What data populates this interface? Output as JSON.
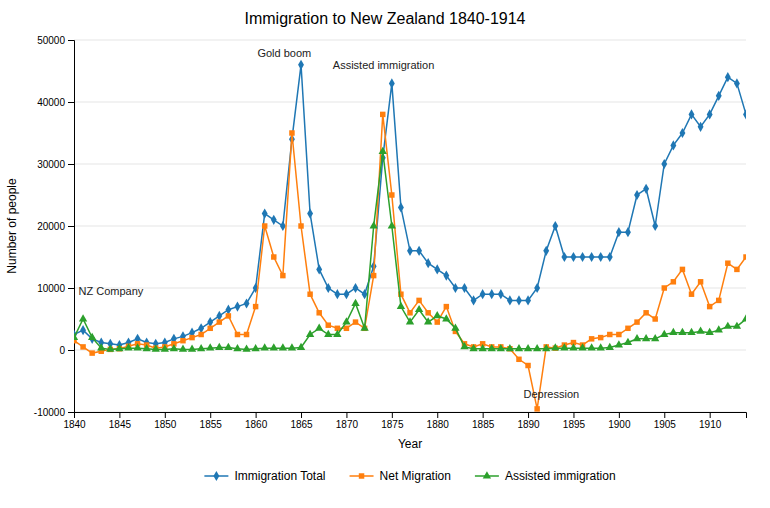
{
  "chart_data": {
    "type": "line",
    "title": "Immigration to New Zealand 1840-1914",
    "xlabel": "Year",
    "ylabel": "Number of people",
    "xlim": [
      1840,
      1914
    ],
    "ylim": [
      -10000,
      50000
    ],
    "xticks": [
      1840,
      1845,
      1850,
      1855,
      1860,
      1865,
      1870,
      1875,
      1880,
      1885,
      1890,
      1895,
      1900,
      1905,
      1910
    ],
    "yticks": [
      -10000,
      0,
      10000,
      20000,
      30000,
      40000,
      50000
    ],
    "grid": true,
    "legend": "bottom",
    "annotations": [
      {
        "text": "NZ Company",
        "x": 1840.5,
        "y": 8500
      },
      {
        "text": "Gold boom",
        "x": 1860.2,
        "y": 47000
      },
      {
        "text": "Assisted immigration",
        "x": 1868.5,
        "y": 45000
      },
      {
        "text": "Depression",
        "x": 1889.5,
        "y": -8000
      }
    ],
    "x": [
      1840,
      1841,
      1842,
      1843,
      1844,
      1845,
      1846,
      1847,
      1848,
      1849,
      1850,
      1851,
      1852,
      1853,
      1854,
      1855,
      1856,
      1857,
      1858,
      1859,
      1860,
      1861,
      1862,
      1863,
      1864,
      1865,
      1866,
      1867,
      1868,
      1869,
      1870,
      1871,
      1872,
      1873,
      1874,
      1875,
      1876,
      1877,
      1878,
      1879,
      1880,
      1881,
      1882,
      1883,
      1884,
      1885,
      1886,
      1887,
      1888,
      1889,
      1890,
      1891,
      1892,
      1893,
      1894,
      1895,
      1896,
      1897,
      1898,
      1899,
      1900,
      1901,
      1902,
      1903,
      1904,
      1905,
      1906,
      1907,
      1908,
      1909,
      1910,
      1911,
      1912,
      1913,
      1914
    ],
    "series": [
      {
        "name": "Immigration Total",
        "marker": "diamond",
        "values": [
          2500,
          3200,
          1800,
          1200,
          1000,
          800,
          1200,
          1800,
          1200,
          1000,
          1200,
          1800,
          2200,
          2800,
          3500,
          4500,
          5500,
          6500,
          7000,
          7500,
          10000,
          22000,
          21000,
          20000,
          34000,
          46000,
          22000,
          13000,
          10000,
          9000,
          9000,
          10000,
          9000,
          13500,
          31000,
          43000,
          23000,
          16000,
          16000,
          14000,
          13000,
          12000,
          10000,
          10000,
          8000,
          9000,
          9000,
          9000,
          8000,
          8000,
          8000,
          10000,
          16000,
          20000,
          15000,
          15000,
          15000,
          15000,
          15000,
          15000,
          19000,
          19000,
          25000,
          26000,
          20000,
          30000,
          33000,
          35000,
          38000,
          36000,
          38000,
          41000,
          44000,
          43000,
          38000
        ]
      },
      {
        "name": "Net Migration",
        "marker": "square",
        "values": [
          1500,
          500,
          -500,
          -200,
          100,
          200,
          600,
          1000,
          800,
          300,
          500,
          1000,
          1500,
          2000,
          2500,
          3500,
          4500,
          5500,
          2500,
          2500,
          7000,
          20000,
          15000,
          12000,
          35000,
          20000,
          9000,
          6000,
          4000,
          3500,
          3500,
          4500,
          3500,
          12000,
          38000,
          25000,
          9000,
          6000,
          8000,
          6000,
          4500,
          7000,
          3000,
          1000,
          500,
          1000,
          500,
          500,
          200,
          -1500,
          -2500,
          -9500,
          500,
          300,
          800,
          1200,
          800,
          1800,
          2000,
          2500,
          2500,
          3500,
          4500,
          6000,
          5000,
          10000,
          11000,
          13000,
          9000,
          11000,
          7000,
          8000,
          14000,
          13000,
          15000
        ]
      },
      {
        "name": "Assisted immigration",
        "marker": "triangle",
        "values": [
          2000,
          5000,
          2000,
          300,
          100,
          200,
          300,
          300,
          200,
          100,
          100,
          200,
          100,
          100,
          200,
          300,
          400,
          400,
          200,
          100,
          200,
          300,
          300,
          300,
          300,
          400,
          2500,
          3500,
          2500,
          2500,
          4500,
          7500,
          3500,
          20000,
          32000,
          20000,
          7000,
          4500,
          6500,
          4500,
          5500,
          5000,
          3500,
          500,
          200,
          200,
          200,
          200,
          200,
          200,
          200,
          200,
          200,
          300,
          300,
          300,
          300,
          300,
          300,
          400,
          800,
          1200,
          1800,
          1800,
          1800,
          2500,
          2800,
          2800,
          2800,
          3000,
          2800,
          3200,
          3800,
          3800,
          5000
        ]
      }
    ]
  }
}
